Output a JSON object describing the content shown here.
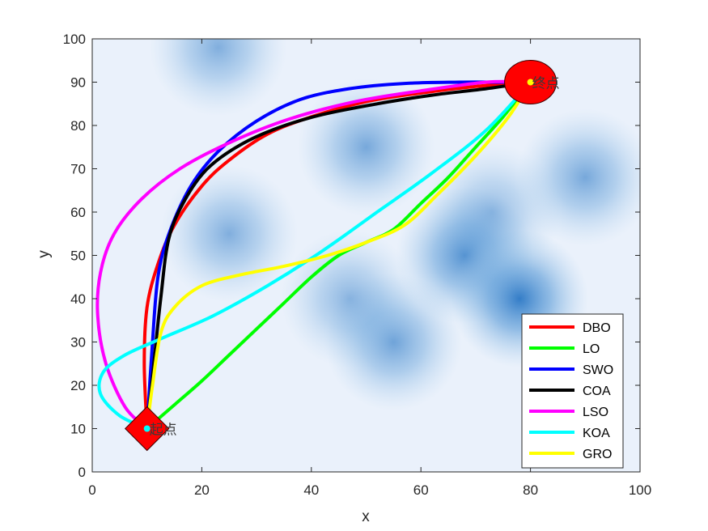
{
  "chart_data": {
    "type": "line",
    "title": "",
    "xlabel": "x",
    "ylabel": "y",
    "xlim": [
      0,
      100
    ],
    "ylim": [
      0,
      100
    ],
    "xticks": [
      "0",
      "20",
      "40",
      "60",
      "80",
      "100"
    ],
    "yticks": [
      "0",
      "10",
      "20",
      "30",
      "40",
      "50",
      "60",
      "70",
      "80",
      "90",
      "100"
    ],
    "grid": false,
    "legend_position": "bottom-right",
    "background": "blue threat heatmap on light background",
    "start": {
      "label": "起点",
      "x": 10,
      "y": 10,
      "marker": "red diamond"
    },
    "goal": {
      "label": "终点",
      "x": 80,
      "y": 90,
      "marker": "red circle"
    },
    "threat_zones": [
      {
        "x": 23,
        "y": 98,
        "strength": 0.55
      },
      {
        "x": 50,
        "y": 75,
        "strength": 0.6
      },
      {
        "x": 25,
        "y": 55,
        "strength": 0.55
      },
      {
        "x": 55,
        "y": 30,
        "strength": 0.65
      },
      {
        "x": 47,
        "y": 40,
        "strength": 0.5
      },
      {
        "x": 68,
        "y": 50,
        "strength": 0.8
      },
      {
        "x": 78,
        "y": 40,
        "strength": 0.95
      },
      {
        "x": 73,
        "y": 60,
        "strength": 0.45
      },
      {
        "x": 90,
        "y": 68,
        "strength": 0.6
      }
    ],
    "series": [
      {
        "name": "DBO",
        "color": "#ff0000",
        "x": [
          10,
          9.5,
          10,
          12,
          15,
          20,
          25,
          32,
          40,
          50,
          60,
          70,
          80
        ],
        "y": [
          10,
          25,
          38,
          48,
          57,
          66,
          72,
          78,
          82,
          85.5,
          87.5,
          89,
          90
        ]
      },
      {
        "name": "LO",
        "color": "#00ff00",
        "x": [
          10,
          15,
          20,
          25,
          30,
          35,
          40,
          45,
          50,
          55,
          60,
          65,
          70,
          75,
          80
        ],
        "y": [
          10,
          15.5,
          21,
          27,
          33,
          39,
          45,
          50,
          53,
          56,
          62,
          68,
          75,
          82,
          90
        ]
      },
      {
        "name": "SWO",
        "color": "#0000ff",
        "x": [
          10,
          11,
          12,
          14,
          18,
          23,
          30,
          38,
          47,
          57,
          67,
          75,
          80
        ],
        "y": [
          10,
          30,
          45,
          55,
          66,
          74,
          81,
          86,
          88.5,
          89.7,
          90,
          90,
          90
        ]
      },
      {
        "name": "COA",
        "color": "#000000",
        "x": [
          10,
          11,
          12.5,
          14,
          17,
          21,
          27,
          34,
          42,
          52,
          62,
          72,
          80
        ],
        "y": [
          10,
          22,
          40,
          54,
          63,
          70,
          75.5,
          79.5,
          82.5,
          85,
          87,
          88.5,
          90
        ]
      },
      {
        "name": "LSO",
        "color": "#ff00ff",
        "x": [
          10,
          6,
          2.5,
          1,
          1.5,
          4,
          9,
          16,
          25,
          36,
          48,
          60,
          72,
          80
        ],
        "y": [
          10,
          15,
          25,
          36,
          46,
          55,
          63,
          70,
          76,
          81.5,
          85.5,
          88,
          90,
          90
        ]
      },
      {
        "name": "KOA",
        "color": "#00ffff",
        "x": [
          10,
          5,
          1.5,
          2,
          6,
          13,
          22,
          32,
          42,
          52,
          62,
          72,
          80
        ],
        "y": [
          10,
          13,
          18,
          23,
          27,
          31,
          36,
          43,
          51,
          60,
          69,
          79,
          90
        ]
      },
      {
        "name": "GRO",
        "color": "#ffff00",
        "x": [
          10,
          11,
          12.5,
          15,
          20,
          27,
          35,
          43,
          50,
          57,
          63,
          70,
          76,
          80
        ],
        "y": [
          10,
          20,
          32,
          38,
          43,
          45.5,
          47.5,
          50,
          53,
          57,
          64,
          73,
          82,
          90
        ]
      }
    ]
  }
}
